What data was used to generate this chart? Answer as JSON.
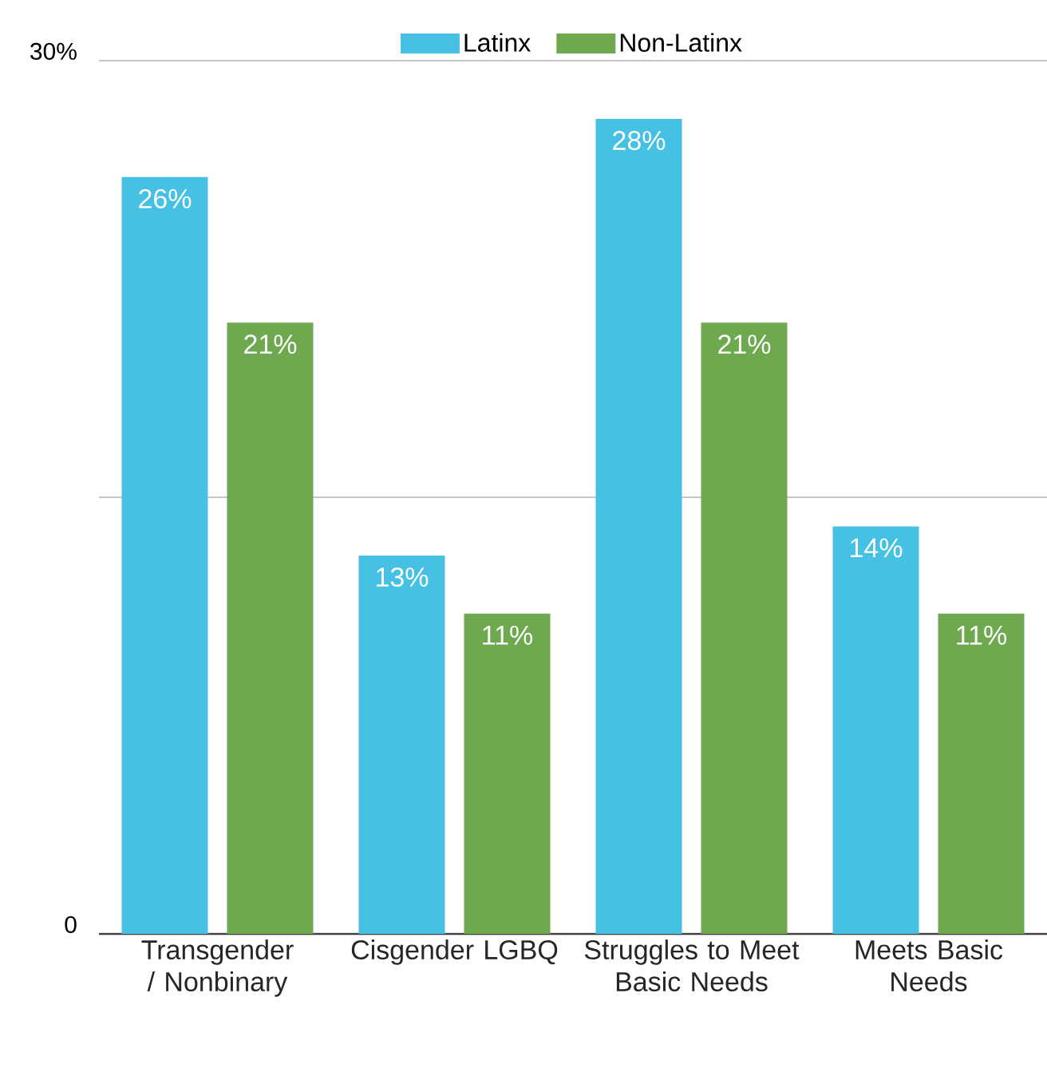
{
  "chart_data": {
    "type": "bar",
    "categories": [
      "Transgender / Nonbinary",
      "Cisgender LGBQ",
      "Struggles to Meet Basic Needs",
      "Meets Basic Needs"
    ],
    "series": [
      {
        "name": "Latinx",
        "color": "#47c1e3",
        "values": [
          26,
          13,
          28,
          14
        ],
        "value_labels": [
          "26%",
          "13%",
          "28%",
          "14%"
        ]
      },
      {
        "name": "Non-Latinx",
        "color": "#6ea84f",
        "values": [
          21,
          11,
          21,
          11
        ],
        "value_labels": [
          "21%",
          "11%",
          "21%",
          "11%"
        ]
      }
    ],
    "ylim": [
      0,
      30
    ],
    "yticks": [
      {
        "value": 0,
        "label": "0"
      },
      {
        "value": 15,
        "label": null
      },
      {
        "value": 30,
        "label": "30%"
      }
    ],
    "grid": "y",
    "legend": "top"
  }
}
